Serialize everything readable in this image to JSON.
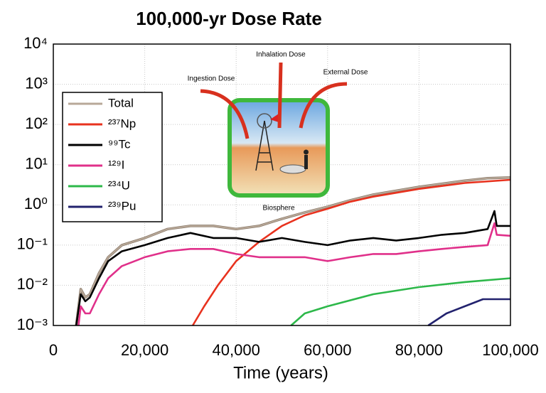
{
  "chart_data": {
    "type": "line",
    "title": "100,000-yr Dose Rate",
    "x_label": "Time (years)",
    "log_y": true,
    "grid": true,
    "legend": "upper left",
    "xlim": [
      0,
      100000
    ],
    "xticks": [
      0,
      {
        "value": 20000,
        "label": "20,000"
      },
      {
        "value": 40000,
        "label": "40,000"
      },
      {
        "value": 60000,
        "label": "60,000"
      },
      {
        "value": 80000,
        "label": "80,000"
      },
      {
        "value": 100000,
        "label": "100,000"
      }
    ],
    "ylim": [
      0.001,
      10000
    ],
    "yticks": [
      {
        "value": 0.001,
        "label": "10⁻³"
      },
      {
        "value": 0.01,
        "label": "10⁻²"
      },
      {
        "value": 0.1,
        "label": "10⁻¹"
      },
      {
        "value": 1,
        "label": "10⁰"
      },
      {
        "value": 10,
        "label": "10¹"
      },
      {
        "value": 100,
        "label": "10²"
      },
      {
        "value": 1000,
        "label": "10³"
      },
      {
        "value": 10000,
        "label": "10⁴"
      }
    ],
    "annotations": [
      "Inhalation Dose",
      "Ingestion Dose",
      "External Dose",
      "Biosphere"
    ],
    "series": [
      {
        "name": "Total",
        "color": "#b8a898",
        "x": [
          5000,
          6000,
          7000,
          8000,
          10000,
          12000,
          15000,
          20000,
          25000,
          30000,
          35000,
          40000,
          45000,
          50000,
          55000,
          60000,
          65000,
          70000,
          80000,
          90000,
          95000,
          100000
        ],
        "values": [
          0.001,
          0.008,
          0.005,
          0.006,
          0.02,
          0.05,
          0.1,
          0.15,
          0.25,
          0.3,
          0.3,
          0.25,
          0.3,
          0.45,
          0.65,
          0.9,
          1.3,
          1.8,
          2.8,
          4,
          4.6,
          4.8
        ]
      },
      {
        "name": "²³⁷Np",
        "color": "#e8321e",
        "x": [
          30500,
          33000,
          36000,
          40000,
          45000,
          50000,
          55000,
          60000,
          65000,
          70000,
          80000,
          90000,
          100000
        ],
        "values": [
          0.001,
          0.003,
          0.01,
          0.04,
          0.12,
          0.3,
          0.55,
          0.8,
          1.2,
          1.6,
          2.5,
          3.5,
          4.2
        ]
      },
      {
        "name": "⁹⁹Tc",
        "color": "#000000",
        "x": [
          5000,
          6000,
          7000,
          8000,
          10000,
          12000,
          15000,
          20000,
          25000,
          30000,
          35000,
          40000,
          45000,
          50000,
          55000,
          60000,
          65000,
          70000,
          75000,
          80000,
          85000,
          90000,
          95000,
          96500,
          97000,
          100000
        ],
        "values": [
          0.001,
          0.006,
          0.004,
          0.005,
          0.015,
          0.04,
          0.07,
          0.1,
          0.15,
          0.2,
          0.15,
          0.15,
          0.12,
          0.15,
          0.12,
          0.1,
          0.13,
          0.15,
          0.13,
          0.15,
          0.18,
          0.2,
          0.25,
          0.7,
          0.3,
          0.3
        ]
      },
      {
        "name": "¹²⁹I",
        "color": "#e0308a",
        "x": [
          5500,
          6000,
          7000,
          8000,
          10000,
          12000,
          15000,
          20000,
          25000,
          30000,
          35000,
          40000,
          45000,
          50000,
          55000,
          60000,
          65000,
          70000,
          75000,
          80000,
          85000,
          90000,
          95000,
          96500,
          97000,
          100000
        ],
        "values": [
          0.001,
          0.003,
          0.002,
          0.002,
          0.006,
          0.015,
          0.03,
          0.05,
          0.07,
          0.08,
          0.08,
          0.06,
          0.05,
          0.05,
          0.05,
          0.04,
          0.05,
          0.06,
          0.06,
          0.07,
          0.08,
          0.09,
          0.1,
          0.35,
          0.18,
          0.17
        ]
      },
      {
        "name": "²³⁴U",
        "color": "#2db84a",
        "x": [
          52000,
          55000,
          60000,
          70000,
          80000,
          90000,
          100000
        ],
        "values": [
          0.001,
          0.002,
          0.003,
          0.006,
          0.009,
          0.012,
          0.015
        ]
      },
      {
        "name": "²³⁹Pu",
        "color": "#22226e",
        "x": [
          82000,
          86000,
          90000,
          94000,
          100000
        ],
        "values": [
          0.001,
          0.002,
          0.003,
          0.0045,
          0.0045
        ]
      }
    ]
  }
}
